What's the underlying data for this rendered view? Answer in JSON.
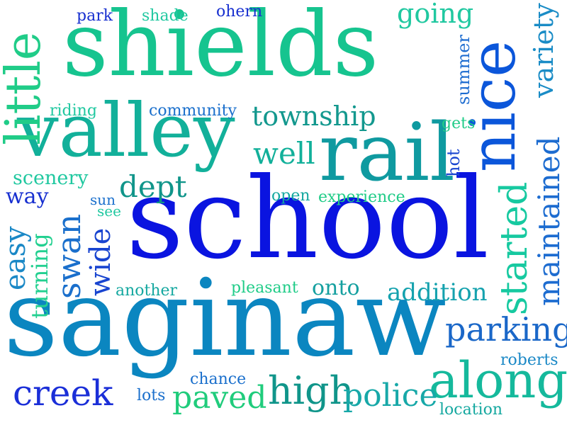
{
  "words": [
    {
      "text": "shields",
      "color": "#16c48f",
      "rotated": false
    },
    {
      "text": "school",
      "color": "#0a14e0",
      "rotated": false
    },
    {
      "text": "saginaw",
      "color": "#0b86c0",
      "rotated": false
    },
    {
      "text": "rail",
      "color": "#0f9aa0",
      "rotated": false
    },
    {
      "text": "nice",
      "color": "#0b56da",
      "rotated": true
    },
    {
      "text": "valley",
      "color": "#12b09a",
      "rotated": false
    },
    {
      "text": "little",
      "color": "#20cc88",
      "rotated": true
    },
    {
      "text": "along",
      "color": "#15b99c",
      "rotated": false
    },
    {
      "text": "high",
      "color": "#10958a",
      "rotated": false
    },
    {
      "text": "police",
      "color": "#17a8a8",
      "rotated": false
    },
    {
      "text": "creek",
      "color": "#1b2fd8",
      "rotated": false
    },
    {
      "text": "parking",
      "color": "#1a67c8",
      "rotated": false
    },
    {
      "text": "township",
      "color": "#13988e",
      "rotated": false
    },
    {
      "text": "maintained",
      "color": "#1d6cd0",
      "rotated": true
    },
    {
      "text": "started",
      "color": "#16c9a0",
      "rotated": true
    },
    {
      "text": "swan",
      "color": "#1a6fcc",
      "rotated": true
    },
    {
      "text": "wide",
      "color": "#1844d0",
      "rotated": true
    },
    {
      "text": "easy",
      "color": "#1a88c6",
      "rotated": true
    },
    {
      "text": "dept",
      "color": "#10958a",
      "rotated": false
    },
    {
      "text": "well",
      "color": "#12b09a",
      "rotated": false
    },
    {
      "text": "going",
      "color": "#20c8a0",
      "rotated": false
    },
    {
      "text": "variety",
      "color": "#1a8cc6",
      "rotated": true
    },
    {
      "text": "paved",
      "color": "#20cc7c",
      "rotated": false
    },
    {
      "text": "addition",
      "color": "#15a2ae",
      "rotated": false
    },
    {
      "text": "onto",
      "color": "#15a0a0",
      "rotated": false
    },
    {
      "text": "turning",
      "color": "#22d090",
      "rotated": true
    },
    {
      "text": "scenery",
      "color": "#20c8a0",
      "rotated": false
    },
    {
      "text": "way",
      "color": "#1830d0",
      "rotated": false
    },
    {
      "text": "summer",
      "color": "#1d6cd0",
      "rotated": true
    },
    {
      "text": "hot",
      "color": "#1844d0",
      "rotated": true
    },
    {
      "text": "community",
      "color": "#1a6fcc",
      "rotated": false
    },
    {
      "text": "riding",
      "color": "#20c8a0",
      "rotated": false
    },
    {
      "text": "experience",
      "color": "#20cc88",
      "rotated": false
    },
    {
      "text": "pleasant",
      "color": "#20cc88",
      "rotated": false
    },
    {
      "text": "another",
      "color": "#15a8a0",
      "rotated": false
    },
    {
      "text": "open",
      "color": "#15a8a0",
      "rotated": false
    },
    {
      "text": "chance",
      "color": "#1a6fcc",
      "rotated": false
    },
    {
      "text": "lots",
      "color": "#1a6fcc",
      "rotated": false
    },
    {
      "text": "roberts",
      "color": "#1a88c6",
      "rotated": false
    },
    {
      "text": "location",
      "color": "#15a8a0",
      "rotated": false
    },
    {
      "text": "gets",
      "color": "#20cc88",
      "rotated": false
    },
    {
      "text": "sun",
      "color": "#1a6fcc",
      "rotated": false
    },
    {
      "text": "see",
      "color": "#20c8a0",
      "rotated": false
    },
    {
      "text": "park",
      "color": "#1830d0",
      "rotated": false
    },
    {
      "text": "shade",
      "color": "#20c8a0",
      "rotated": false
    },
    {
      "text": "ohern",
      "color": "#1830d0",
      "rotated": false
    }
  ]
}
